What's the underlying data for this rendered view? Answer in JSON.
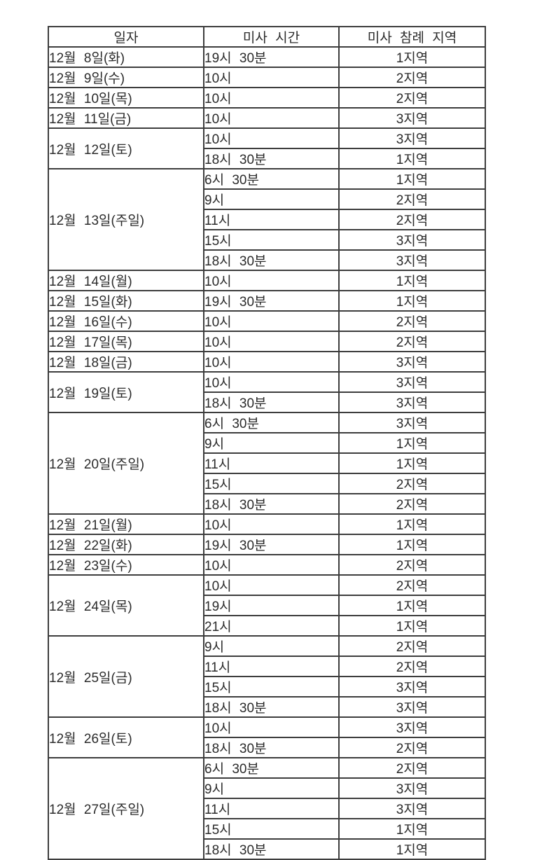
{
  "colors": {
    "background": "#ffffff",
    "border": "#3d3d3d",
    "text": "#2b2b2b"
  },
  "table": {
    "headers": [
      {
        "label": "일자"
      },
      {
        "label": "미사 시간"
      },
      {
        "label": "미사 참례 지역"
      }
    ],
    "groups": [
      {
        "date": "12월 8일(화)",
        "masses": [
          {
            "time": "19시 30분",
            "region": "1지역"
          }
        ]
      },
      {
        "date": "12월 9일(수)",
        "masses": [
          {
            "time": "10시",
            "region": "2지역"
          }
        ]
      },
      {
        "date": "12월 10일(목)",
        "masses": [
          {
            "time": "10시",
            "region": "2지역"
          }
        ]
      },
      {
        "date": "12월 11일(금)",
        "masses": [
          {
            "time": "10시",
            "region": "3지역"
          }
        ]
      },
      {
        "date": "12월 12일(토)",
        "masses": [
          {
            "time": "10시",
            "region": "3지역"
          },
          {
            "time": "18시 30분",
            "region": "1지역"
          }
        ]
      },
      {
        "date": "12월 13일(주일)",
        "masses": [
          {
            "time": "6시 30분",
            "region": "1지역"
          },
          {
            "time": "9시",
            "region": "2지역"
          },
          {
            "time": "11시",
            "region": "2지역"
          },
          {
            "time": "15시",
            "region": "3지역"
          },
          {
            "time": "18시 30분",
            "region": "3지역"
          }
        ]
      },
      {
        "date": "12월 14일(월)",
        "masses": [
          {
            "time": "10시",
            "region": "1지역"
          }
        ]
      },
      {
        "date": "12월 15일(화)",
        "masses": [
          {
            "time": "19시 30분",
            "region": "1지역"
          }
        ]
      },
      {
        "date": "12월 16일(수)",
        "masses": [
          {
            "time": "10시",
            "region": "2지역"
          }
        ]
      },
      {
        "date": "12월 17일(목)",
        "masses": [
          {
            "time": "10시",
            "region": "2지역"
          }
        ]
      },
      {
        "date": "12월 18일(금)",
        "masses": [
          {
            "time": "10시",
            "region": "3지역"
          }
        ]
      },
      {
        "date": "12월 19일(토)",
        "masses": [
          {
            "time": "10시",
            "region": "3지역"
          },
          {
            "time": "18시 30분",
            "region": "3지역"
          }
        ]
      },
      {
        "date": "12월 20일(주일)",
        "masses": [
          {
            "time": "6시 30분",
            "region": "3지역"
          },
          {
            "time": "9시",
            "region": "1지역"
          },
          {
            "time": "11시",
            "region": "1지역"
          },
          {
            "time": "15시",
            "region": "2지역"
          },
          {
            "time": "18시 30분",
            "region": "2지역"
          }
        ]
      },
      {
        "date": "12월 21일(월)",
        "masses": [
          {
            "time": "10시",
            "region": "1지역"
          }
        ]
      },
      {
        "date": "12월 22일(화)",
        "masses": [
          {
            "time": "19시 30분",
            "region": "1지역"
          }
        ]
      },
      {
        "date": "12월 23일(수)",
        "masses": [
          {
            "time": "10시",
            "region": "2지역"
          }
        ]
      },
      {
        "date": "12월 24일(목)",
        "masses": [
          {
            "time": "10시",
            "region": "2지역"
          },
          {
            "time": "19시",
            "region": "1지역"
          },
          {
            "time": "21시",
            "region": "1지역"
          }
        ]
      },
      {
        "date": "12월 25일(금)",
        "masses": [
          {
            "time": "9시",
            "region": "2지역"
          },
          {
            "time": "11시",
            "region": "2지역"
          },
          {
            "time": "15시",
            "region": "3지역"
          },
          {
            "time": "18시 30분",
            "region": "3지역"
          }
        ]
      },
      {
        "date": "12월 26일(토)",
        "masses": [
          {
            "time": "10시",
            "region": "3지역"
          },
          {
            "time": "18시 30분",
            "region": "2지역"
          }
        ]
      },
      {
        "date": "12월 27일(주일)",
        "masses": [
          {
            "time": "6시 30분",
            "region": "2지역"
          },
          {
            "time": "9시",
            "region": "3지역"
          },
          {
            "time": "11시",
            "region": "3지역"
          },
          {
            "time": "15시",
            "region": "1지역"
          },
          {
            "time": "18시 30분",
            "region": "1지역"
          }
        ]
      }
    ]
  }
}
